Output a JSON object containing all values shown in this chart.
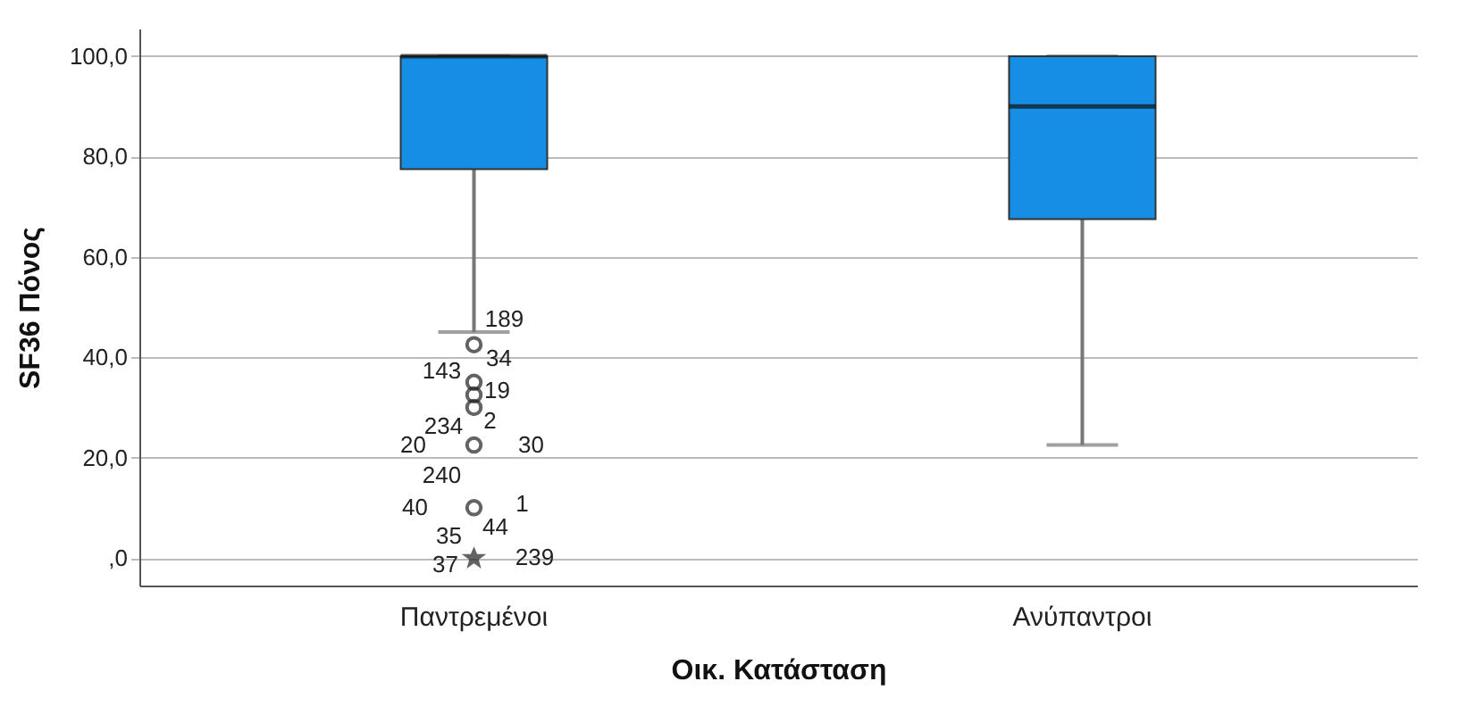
{
  "chart_data": {
    "type": "box",
    "xlabel": "Οικ. Κατάσταση",
    "ylabel": "SF36 Πόνος",
    "categories": [
      "Παντρεμένοι",
      "Ανύπαντροι"
    ],
    "color": "#168ee6",
    "boxes": [
      {
        "low": 45,
        "q1": 77.5,
        "median": 100,
        "q3": 100,
        "high": 100,
        "outliers": [
          42.5,
          35,
          32.5,
          30,
          22.5,
          10,
          0
        ]
      },
      {
        "low": 22.5,
        "q1": 67.5,
        "median": 90,
        "q3": 100,
        "high": 100
      }
    ],
    "ylim": [
      -5.5,
      105.5
    ],
    "yticks": [
      {
        "value": 0,
        "label": ",0"
      },
      {
        "value": 20,
        "label": "20,0"
      },
      {
        "value": 40,
        "label": "40,0"
      },
      {
        "value": 60,
        "label": "60,0"
      },
      {
        "value": 80,
        "label": "80,0"
      },
      {
        "value": 100,
        "label": "100,0"
      }
    ],
    "grid": "y",
    "annotations": [
      "189",
      "34",
      "143",
      "19",
      "234",
      "2",
      "20",
      "30",
      "240",
      "40",
      "1",
      "35",
      "44",
      "37",
      "239"
    ]
  }
}
